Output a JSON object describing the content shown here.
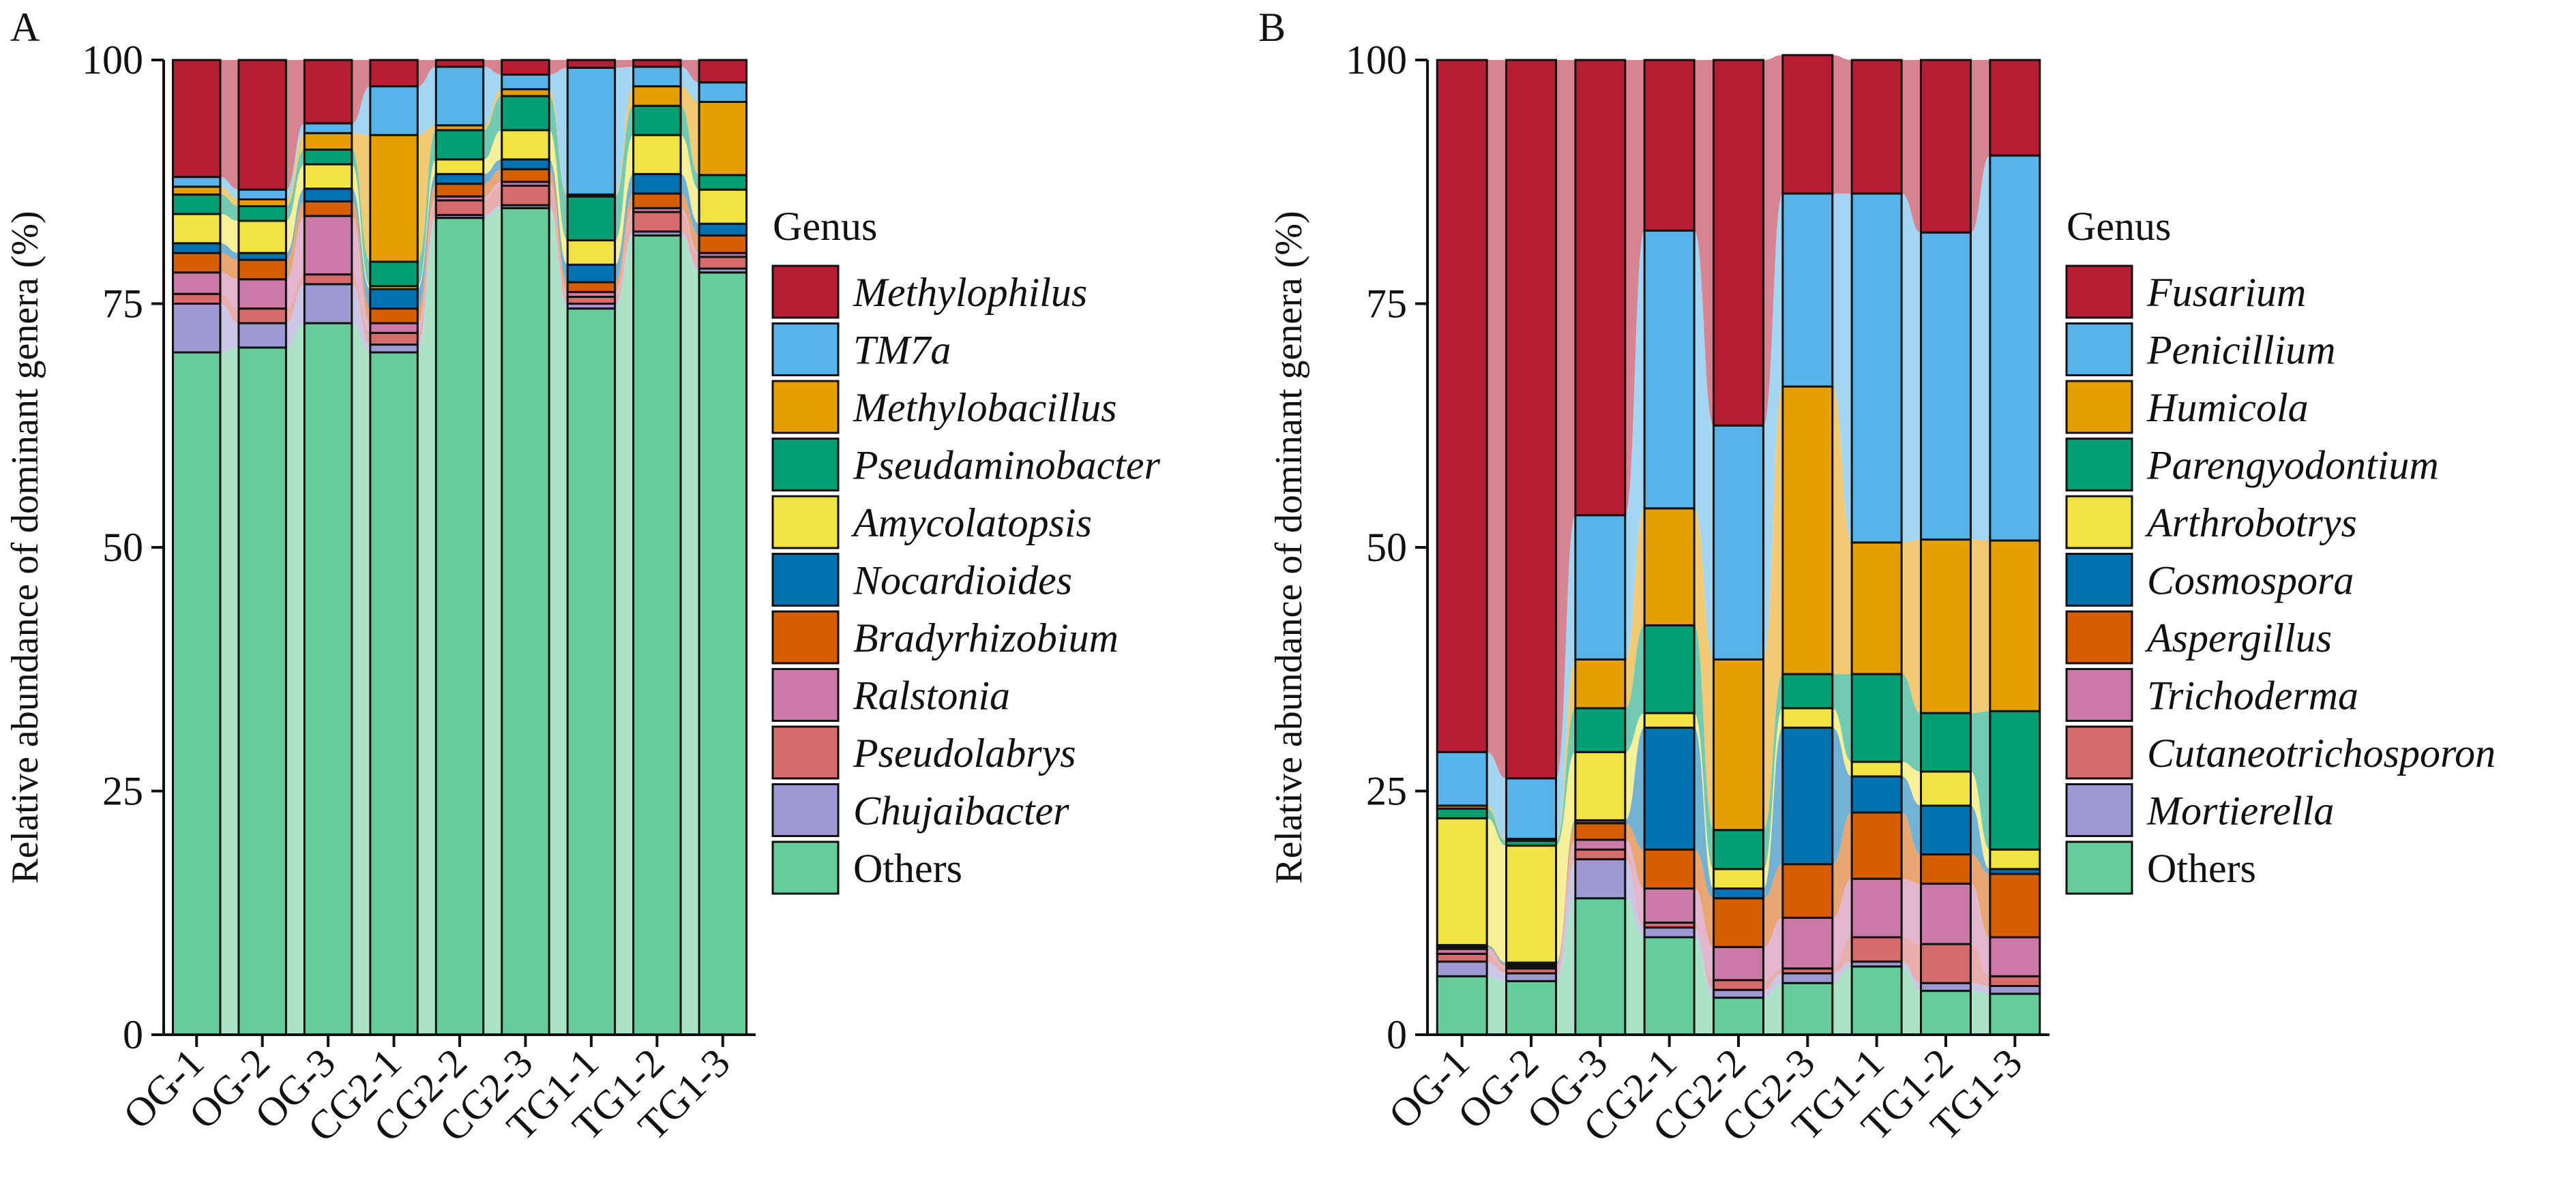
{
  "chart_data": [
    {
      "type": "bar",
      "panel": "A",
      "ylabel": "Relative abundance of dominant genera (%)",
      "ylim": [
        0,
        100
      ],
      "yticks": [
        0,
        25,
        50,
        75,
        100
      ],
      "legend_title": "Genus",
      "categories": [
        "OG-1",
        "OG-2",
        "OG-3",
        "CG2-1",
        "CG2-2",
        "CG2-3",
        "TG1-1",
        "TG1-2",
        "TG1-3"
      ],
      "series": [
        {
          "name": "Others",
          "italic": false,
          "color": "#66cc99",
          "values": [
            70.0,
            70.5,
            73.0,
            70.0,
            83.8,
            84.8,
            74.5,
            82.0,
            78.2
          ]
        },
        {
          "name": "Chujaibacter",
          "italic": true,
          "color": "#9c9ad0",
          "values": [
            5.0,
            2.5,
            4.0,
            0.8,
            0.3,
            0.3,
            0.5,
            0.4,
            0.4
          ]
        },
        {
          "name": "Pseudolabrys",
          "italic": true,
          "color": "#d56b6b",
          "values": [
            1.0,
            1.5,
            1.0,
            1.2,
            1.5,
            2.0,
            0.7,
            2.0,
            1.2
          ]
        },
        {
          "name": "Ralstonia",
          "italic": true,
          "color": "#cc79a7",
          "values": [
            2.2,
            3.0,
            6.0,
            1.0,
            0.4,
            0.4,
            0.5,
            0.4,
            0.4
          ]
        },
        {
          "name": "Bradyrhizobium",
          "italic": true,
          "color": "#d55e00",
          "values": [
            2.0,
            2.0,
            1.5,
            1.5,
            1.3,
            1.3,
            1.0,
            1.5,
            1.8
          ]
        },
        {
          "name": "Nocardioides",
          "italic": true,
          "color": "#0072b2",
          "values": [
            1.0,
            0.7,
            1.3,
            2.0,
            1.0,
            1.0,
            1.8,
            2.0,
            1.2
          ]
        },
        {
          "name": "Amycolatopsis",
          "italic": true,
          "color": "#f0e442",
          "values": [
            3.0,
            3.3,
            2.5,
            0.3,
            1.5,
            3.0,
            2.5,
            4.0,
            3.5
          ]
        },
        {
          "name": "Pseudaminobacter",
          "italic": true,
          "color": "#009e73",
          "values": [
            2.0,
            1.5,
            1.5,
            2.5,
            3.0,
            3.5,
            4.5,
            3.0,
            1.5
          ]
        },
        {
          "name": "Methylobacillus",
          "italic": true,
          "color": "#e69f00",
          "values": [
            0.8,
            0.7,
            1.7,
            13.0,
            0.5,
            0.7,
            0.2,
            2.0,
            7.5
          ]
        },
        {
          "name": "TM7a",
          "italic": true,
          "color": "#56b4e9",
          "values": [
            1.0,
            1.0,
            1.0,
            5.0,
            6.0,
            1.5,
            13.0,
            2.0,
            2.0
          ]
        },
        {
          "name": "Methylophilus",
          "italic": true,
          "color": "#b81d35",
          "values": [
            12.0,
            13.3,
            6.5,
            2.7,
            0.7,
            1.5,
            0.8,
            0.7,
            2.3
          ]
        }
      ]
    },
    {
      "type": "bar",
      "panel": "B",
      "ylabel": "Relative abundance of dominant genera (%)",
      "ylim": [
        0,
        100
      ],
      "yticks": [
        0,
        25,
        50,
        75,
        100
      ],
      "legend_title": "Genus",
      "categories": [
        "OG-1",
        "OG-2",
        "OG-3",
        "CG2-1",
        "CG2-2",
        "CG2-3",
        "TG1-1",
        "TG1-2",
        "TG1-3"
      ],
      "series": [
        {
          "name": "Others",
          "italic": false,
          "color": "#66cc99",
          "values": [
            6.0,
            5.5,
            14.0,
            10.0,
            3.8,
            5.3,
            7.0,
            4.5,
            4.2
          ]
        },
        {
          "name": "Mortierella",
          "italic": true,
          "color": "#9c9ad0",
          "values": [
            1.5,
            0.8,
            4.0,
            1.0,
            0.8,
            1.0,
            0.5,
            0.8,
            0.8
          ]
        },
        {
          "name": "Cutaneotrichosporon",
          "italic": true,
          "color": "#d56b6b",
          "values": [
            0.8,
            0.5,
            1.0,
            0.5,
            1.0,
            0.5,
            2.5,
            4.0,
            1.0
          ]
        },
        {
          "name": "Trichoderma",
          "italic": true,
          "color": "#cc79a7",
          "values": [
            0.5,
            0.2,
            1.0,
            3.5,
            3.4,
            5.2,
            6.0,
            6.2,
            4.0
          ]
        },
        {
          "name": "Aspergillus",
          "italic": true,
          "color": "#d55e00",
          "values": [
            0.2,
            0.2,
            1.7,
            4.0,
            5.0,
            5.5,
            6.8,
            3.0,
            6.5
          ]
        },
        {
          "name": "Cosmospora",
          "italic": true,
          "color": "#0072b2",
          "values": [
            0.2,
            0.2,
            0.3,
            12.5,
            1.0,
            14.0,
            3.7,
            5.0,
            0.5
          ]
        },
        {
          "name": "Arthrobotrys",
          "italic": true,
          "color": "#f0e442",
          "values": [
            13.0,
            12.0,
            7.0,
            1.5,
            2.0,
            2.0,
            1.5,
            3.5,
            2.0
          ]
        },
        {
          "name": "Parengyodontium",
          "italic": true,
          "color": "#009e73",
          "values": [
            1.0,
            0.5,
            4.5,
            9.0,
            4.0,
            3.5,
            9.0,
            6.0,
            14.2
          ]
        },
        {
          "name": "Humicola",
          "italic": true,
          "color": "#e69f00",
          "values": [
            0.3,
            0.2,
            5.0,
            12.0,
            17.5,
            29.5,
            13.5,
            17.8,
            17.5
          ]
        },
        {
          "name": "Penicillium",
          "italic": true,
          "color": "#56b4e9",
          "values": [
            5.5,
            6.2,
            14.8,
            28.5,
            24.0,
            19.8,
            35.8,
            31.5,
            39.5
          ]
        },
        {
          "name": "Fusarium",
          "italic": true,
          "color": "#b81d35",
          "values": [
            71.0,
            73.7,
            46.7,
            17.5,
            37.5,
            14.2,
            13.7,
            17.7,
            9.8
          ]
        }
      ]
    }
  ]
}
